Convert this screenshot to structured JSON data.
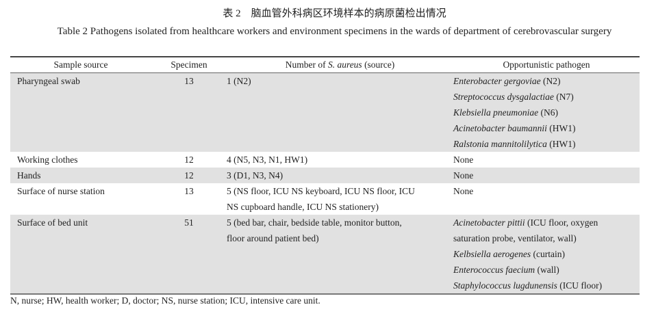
{
  "title_cn": "表 2　脑血管外科病区环境样本的病原菌检出情况",
  "title_en": "Table 2    Pathogens isolated from healthcare workers and environment specimens in the wards of department of cerebrovascular surgery",
  "headers": {
    "sample_source": "Sample source",
    "specimen": "Specimen",
    "number_prefix": "Number of ",
    "number_italic": "S. aureus",
    "number_suffix": " (source)",
    "opportunistic": "Opportunistic pathogen"
  },
  "rows": [
    {
      "source": "Pharyngeal swab",
      "specimen": "13",
      "aureus": [
        "1 (N2)"
      ],
      "pathogens": [
        {
          "name": "Enterobacter gergoviae",
          "src": " (N2)"
        },
        {
          "name": "Streptococcus dysgalactiae",
          "src": " (N7)"
        },
        {
          "name": "Klebsiella pneumoniae",
          "src": " (N6)"
        },
        {
          "name": "Acinetobacter baumannii",
          "src": " (HW1)"
        },
        {
          "name": "Ralstonia mannitolilytica",
          "src": " (HW1)"
        }
      ]
    },
    {
      "source": "Working clothes",
      "specimen": "12",
      "aureus": [
        "4 (N5, N3, N1, HW1)"
      ],
      "pathogens": [
        {
          "name": "",
          "src": "None"
        }
      ]
    },
    {
      "source": "Hands",
      "specimen": "12",
      "aureus": [
        "3 (D1, N3, N4)"
      ],
      "pathogens": [
        {
          "name": "",
          "src": "None"
        }
      ]
    },
    {
      "source": "Surface of nurse station",
      "specimen": "13",
      "aureus": [
        "5 (NS floor, ICU NS keyboard, ICU NS floor, ICU",
        "NS cupboard handle, ICU NS stationery)"
      ],
      "pathogens": [
        {
          "name": "",
          "src": "None"
        }
      ]
    },
    {
      "source": "Surface of bed unit",
      "specimen": "51",
      "aureus": [
        "5 (bed bar, chair, bedside table, monitor button,",
        "floor around patient bed)"
      ],
      "pathogens": [
        {
          "name": "Acinetobacter pittii",
          "src": " (ICU floor, oxygen"
        },
        {
          "name": "",
          "src": "saturation probe, ventilator, wall)"
        },
        {
          "name": "Kelbsiella aerogenes",
          "src": " (curtain)"
        },
        {
          "name": "Enterococcus faecium",
          "src": " (wall)"
        },
        {
          "name": "Staphylococcus lugdunensis",
          "src": " (ICU floor)"
        }
      ]
    }
  ],
  "footnote": "N, nurse; HW, health worker; D, doctor; NS, nurse station; ICU, intensive care unit."
}
